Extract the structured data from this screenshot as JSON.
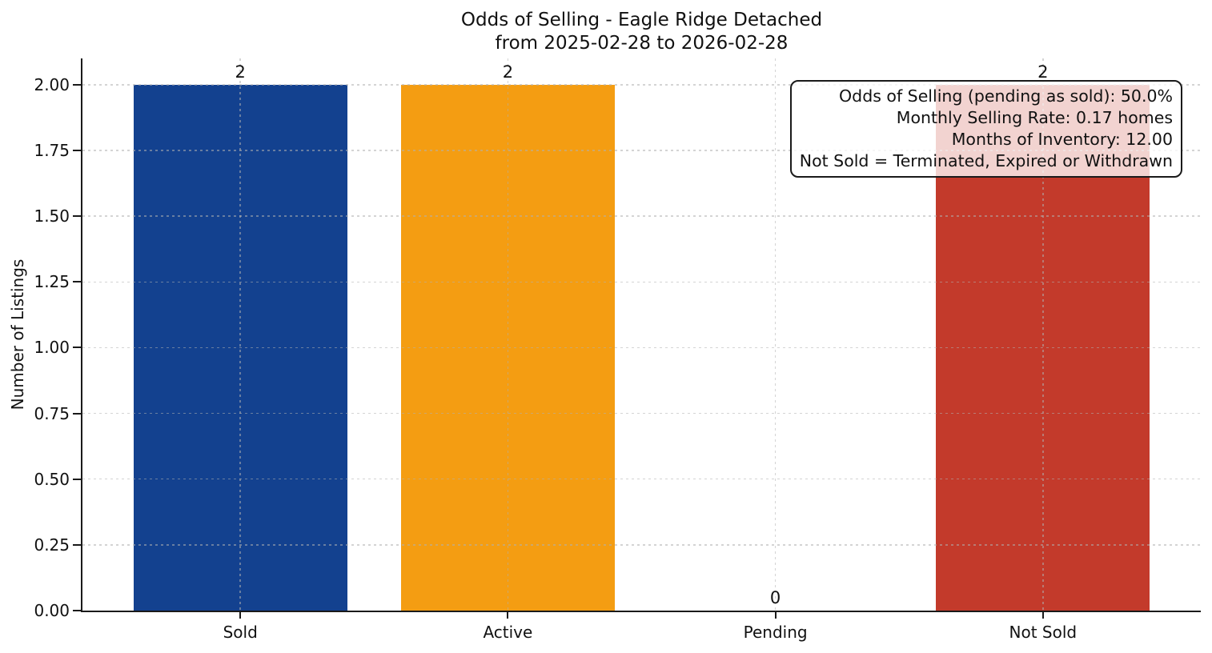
{
  "chart_data": {
    "type": "bar",
    "title": "Odds of Selling - Eagle Ridge Detached",
    "subtitle": "from 2025-02-28 to 2026-02-28",
    "categories": [
      "Sold",
      "Active",
      "Pending",
      "Not Sold"
    ],
    "values": [
      2,
      2,
      0,
      2
    ],
    "bar_value_labels": [
      "2",
      "2",
      "0",
      "2"
    ],
    "bar_colors": [
      "#13418f",
      "#f49d12",
      null,
      "#c33a2b"
    ],
    "xlabel": "",
    "ylabel": "Number of Listings",
    "ylim": [
      0,
      2.1
    ],
    "yticks": [
      0,
      0.25,
      0.5,
      0.75,
      1,
      1.25,
      1.5,
      1.75,
      2
    ],
    "ytick_labels": [
      "0.00",
      "0.25",
      "0.50",
      "0.75",
      "1.00",
      "1.25",
      "1.50",
      "1.75",
      "2.00"
    ],
    "grid": "dashed gridlines on both axes, drawn over bars",
    "legend": "none",
    "annotation": {
      "lines": [
        "Odds of Selling (pending as sold): 50.0%",
        "Monthly Selling Rate: 0.17 homes",
        "Months of Inventory: 12.00",
        "Not Sold = Terminated, Expired or Withdrawn"
      ]
    },
    "colors": {
      "sold_bar": "#13418f",
      "active_bar": "#f49d12",
      "not_sold_bar": "#c33a2b",
      "axis": "#1a1a1a",
      "gridline": "#b0b0b0"
    }
  }
}
